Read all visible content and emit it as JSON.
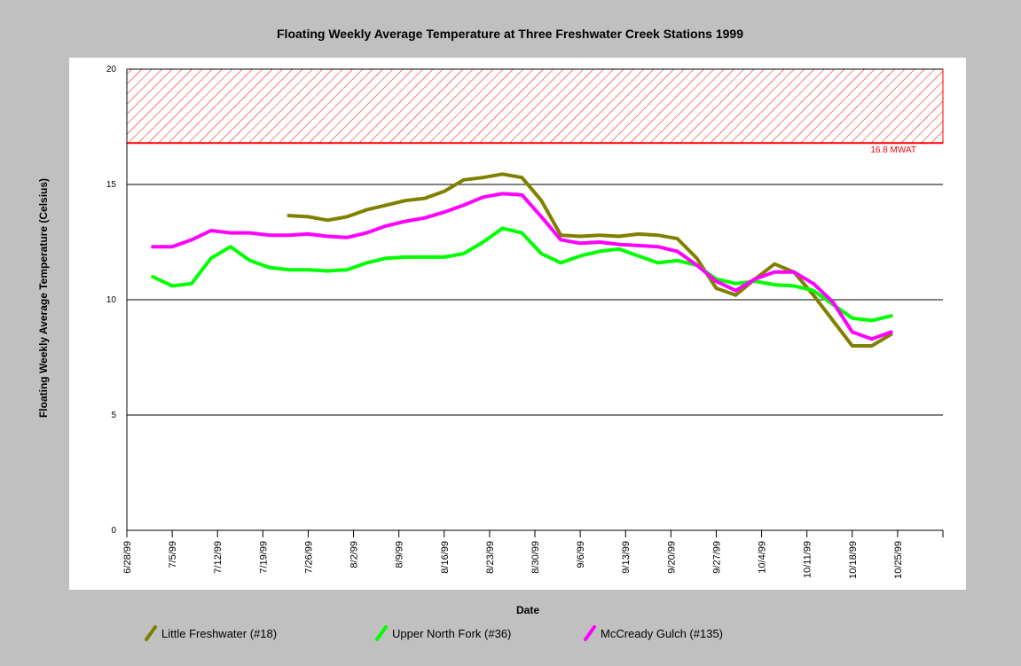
{
  "chart_data": {
    "type": "line",
    "title": "Floating Weekly Average Temperature at Three Freshwater Creek Stations 1999",
    "y_label": "Floating Weekly Average Temperature (Celsius)",
    "x_label": "Date",
    "x": [
      "7/2/99",
      "7/5/99",
      "7/8/99",
      "7/11/99",
      "7/14/99",
      "7/17/99",
      "7/20/99",
      "7/23/99",
      "7/26/99",
      "7/29/99",
      "8/1/99",
      "8/4/99",
      "8/7/99",
      "8/10/99",
      "8/13/99",
      "8/16/99",
      "8/19/99",
      "8/22/99",
      "8/25/99",
      "8/28/99",
      "8/31/99",
      "9/3/99",
      "9/6/99",
      "9/9/99",
      "9/12/99",
      "9/15/99",
      "9/18/99",
      "9/21/99",
      "9/24/99",
      "9/27/99",
      "9/30/99",
      "10/3/99",
      "10/6/99",
      "10/9/99",
      "10/12/99",
      "10/15/99",
      "10/18/99",
      "10/21/99",
      "10/24/99"
    ],
    "series": [
      {
        "name": "Little Freshwater (#18)",
        "color": "#808000",
        "values": [
          null,
          null,
          null,
          null,
          null,
          null,
          null,
          13.65,
          13.6,
          13.45,
          13.6,
          13.9,
          14.1,
          14.3,
          14.4,
          14.7,
          15.2,
          15.3,
          15.45,
          15.3,
          14.3,
          12.8,
          12.75,
          12.8,
          12.75,
          12.85,
          12.8,
          12.65,
          11.8,
          10.5,
          10.2,
          10.9,
          11.55,
          11.2,
          10.2,
          9.1,
          8.0,
          8.0,
          8.5
        ]
      },
      {
        "name": "Upper North Fork (#36)",
        "color": "#00ff00",
        "values": [
          11.0,
          10.6,
          10.7,
          11.8,
          12.3,
          11.7,
          11.4,
          11.3,
          11.3,
          11.25,
          11.3,
          11.6,
          11.8,
          11.85,
          11.85,
          11.85,
          12.0,
          12.5,
          13.1,
          12.9,
          12.0,
          11.6,
          11.9,
          12.1,
          12.2,
          11.9,
          11.6,
          11.7,
          11.5,
          10.9,
          10.7,
          10.8,
          10.65,
          10.6,
          10.4,
          9.8,
          9.2,
          9.1,
          9.3
        ]
      },
      {
        "name": "McCready Gulch (#135)",
        "color": "#ff00ff",
        "values": [
          12.3,
          12.3,
          12.6,
          13.0,
          12.9,
          12.9,
          12.8,
          12.8,
          12.85,
          12.75,
          12.7,
          12.9,
          13.2,
          13.4,
          13.55,
          13.8,
          14.1,
          14.45,
          14.6,
          14.55,
          13.6,
          12.6,
          12.45,
          12.5,
          12.4,
          12.35,
          12.3,
          12.1,
          11.5,
          10.8,
          10.4,
          10.9,
          11.2,
          11.2,
          10.7,
          9.9,
          8.6,
          8.3,
          8.6
        ]
      }
    ],
    "threshold": {
      "value": 16.8,
      "label": "16.8 MWAT",
      "color": "#ff0000"
    },
    "xlim": [
      "6/28/99",
      "11/1/99"
    ],
    "xticks": [
      "6/28/99",
      "7/5/99",
      "7/12/99",
      "7/19/99",
      "7/26/99",
      "8/2/99",
      "8/9/99",
      "8/16/99",
      "8/23/99",
      "8/30/99",
      "9/6/99",
      "9/13/99",
      "9/20/99",
      "9/27/99",
      "10/4/99",
      "10/11/99",
      "10/18/99",
      "10/25/99"
    ],
    "ylim": [
      0,
      20
    ],
    "yticks": [
      0,
      5,
      10,
      15,
      20
    ],
    "grid": true
  }
}
